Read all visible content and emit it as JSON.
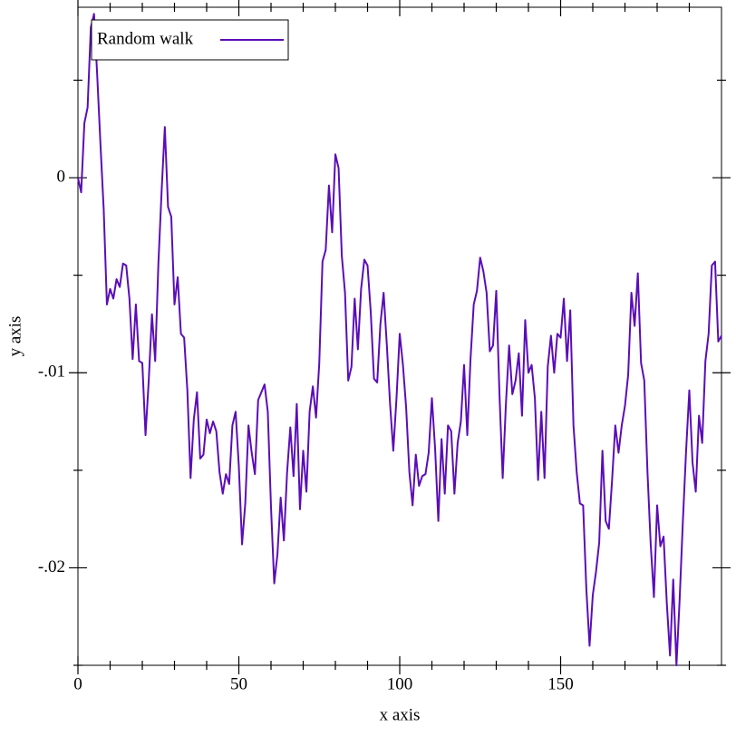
{
  "chart_data": {
    "type": "line",
    "xlabel": "x axis",
    "ylabel": "y axis",
    "xlim": [
      0,
      200
    ],
    "ylim": [
      -0.025,
      0.00874
    ],
    "xticks": [
      0,
      50,
      100,
      150
    ],
    "xminorticks": [
      10,
      20,
      30,
      40,
      60,
      70,
      80,
      90,
      110,
      120,
      130,
      140,
      160,
      170,
      180,
      190
    ],
    "yticks": [
      0,
      {
        "value": -0.01,
        "label": "-.01"
      },
      {
        "value": -0.02,
        "label": "-.02"
      }
    ],
    "yminorticks": [
      0.005,
      -0.005,
      -0.015,
      -0.025
    ],
    "legend": "top-left",
    "x": [
      0,
      1,
      2,
      3,
      4,
      5,
      6,
      7,
      8,
      9,
      10,
      11,
      12,
      13,
      14,
      15,
      16,
      17,
      18,
      19,
      20,
      21,
      22,
      23,
      24,
      25,
      26,
      27,
      28,
      29,
      30,
      31,
      32,
      33,
      34,
      35,
      36,
      37,
      38,
      39,
      40,
      41,
      42,
      43,
      44,
      45,
      46,
      47,
      48,
      49,
      50,
      51,
      52,
      53,
      54,
      55,
      56,
      57,
      58,
      59,
      60,
      61,
      62,
      63,
      64,
      65,
      66,
      67,
      68,
      69,
      70,
      71,
      72,
      73,
      74,
      75,
      76,
      77,
      78,
      79,
      80,
      81,
      82,
      83,
      84,
      85,
      86,
      87,
      88,
      89,
      90,
      91,
      92,
      93,
      94,
      95,
      96,
      97,
      98,
      99,
      100,
      101,
      102,
      103,
      104,
      105,
      106,
      107,
      108,
      109,
      110,
      111,
      112,
      113,
      114,
      115,
      116,
      117,
      118,
      119,
      120,
      121,
      122,
      123,
      124,
      125,
      126,
      127,
      128,
      129,
      130,
      131,
      132,
      133,
      134,
      135,
      136,
      137,
      138,
      139,
      140,
      141,
      142,
      143,
      144,
      145,
      146,
      147,
      148,
      149,
      150,
      151,
      152,
      153,
      154,
      155,
      156,
      157,
      158,
      159,
      160,
      161,
      162,
      163,
      164,
      165,
      166,
      167,
      168,
      169,
      170,
      171,
      172,
      173,
      174,
      175,
      176,
      177,
      178,
      179,
      180,
      181,
      182,
      183,
      184,
      185,
      186,
      187,
      188,
      189,
      190,
      191,
      192,
      193,
      194,
      195,
      196,
      197,
      198,
      199,
      200
    ],
    "series": [
      {
        "name": "Random walk",
        "color": "#5b0db8",
        "values": [
          0,
          -0.00075,
          0.0028,
          0.0036,
          0.0077,
          0.0084,
          0.0052,
          0.0017,
          -0.0016,
          -0.0065,
          -0.0057,
          -0.0062,
          -0.0052,
          -0.0056,
          -0.0044,
          -0.0045,
          -0.0062,
          -0.0093,
          -0.0065,
          -0.0094,
          -0.0095,
          -0.0132,
          -0.0104,
          -0.007,
          -0.0094,
          -0.0044,
          -0.0007,
          0.0026,
          -0.0015,
          -0.002,
          -0.0065,
          -0.0051,
          -0.008,
          -0.0082,
          -0.0109,
          -0.0154,
          -0.0124,
          -0.011,
          -0.0144,
          -0.0142,
          -0.0124,
          -0.0131,
          -0.0125,
          -0.013,
          -0.0151,
          -0.0162,
          -0.0152,
          -0.0157,
          -0.0127,
          -0.012,
          -0.0148,
          -0.0188,
          -0.0167,
          -0.0127,
          -0.0141,
          -0.0152,
          -0.0114,
          -0.011,
          -0.0106,
          -0.012,
          -0.0169,
          -0.0208,
          -0.0193,
          -0.0164,
          -0.0186,
          -0.0151,
          -0.0128,
          -0.0153,
          -0.0116,
          -0.017,
          -0.014,
          -0.0161,
          -0.012,
          -0.0107,
          -0.0123,
          -0.0095,
          -0.0043,
          -0.0037,
          -0.0004,
          -0.0028,
          0.0012,
          0.0005,
          -0.004,
          -0.0059,
          -0.0104,
          -0.0097,
          -0.0062,
          -0.0088,
          -0.0057,
          -0.0042,
          -0.0045,
          -0.0069,
          -0.0103,
          -0.0105,
          -0.0075,
          -0.0059,
          -0.0086,
          -0.0116,
          -0.014,
          -0.0113,
          -0.008,
          -0.0096,
          -0.0118,
          -0.0151,
          -0.0168,
          -0.0142,
          -0.0158,
          -0.0153,
          -0.0152,
          -0.0141,
          -0.0113,
          -0.0139,
          -0.0176,
          -0.0134,
          -0.0162,
          -0.0127,
          -0.013,
          -0.0162,
          -0.0136,
          -0.0125,
          -0.0096,
          -0.0132,
          -0.0093,
          -0.0065,
          -0.0058,
          -0.0041,
          -0.0048,
          -0.0059,
          -0.0089,
          -0.0086,
          -0.0058,
          -0.0111,
          -0.0154,
          -0.0116,
          -0.0086,
          -0.0111,
          -0.0104,
          -0.009,
          -0.0122,
          -0.0073,
          -0.01,
          -0.0096,
          -0.0113,
          -0.0155,
          -0.012,
          -0.0154,
          -0.0097,
          -0.0081,
          -0.01,
          -0.008,
          -0.0082,
          -0.0062,
          -0.0094,
          -0.0068,
          -0.0127,
          -0.0151,
          -0.0167,
          -0.0168,
          -0.0211,
          -0.024,
          -0.0214,
          -0.0202,
          -0.0187,
          -0.014,
          -0.0176,
          -0.018,
          -0.0155,
          -0.0127,
          -0.0141,
          -0.0127,
          -0.0117,
          -0.0101,
          -0.0059,
          -0.0076,
          -0.0049,
          -0.0095,
          -0.0104,
          -0.0151,
          -0.0188,
          -0.0215,
          -0.0168,
          -0.0189,
          -0.0184,
          -0.0218,
          -0.0245,
          -0.0206,
          -0.025,
          -0.0216,
          -0.0176,
          -0.014,
          -0.0109,
          -0.0146,
          -0.0161,
          -0.0122,
          -0.0136,
          -0.0094,
          -0.008,
          -0.0045,
          -0.0043,
          -0.0084,
          -0.0081
        ]
      }
    ]
  }
}
